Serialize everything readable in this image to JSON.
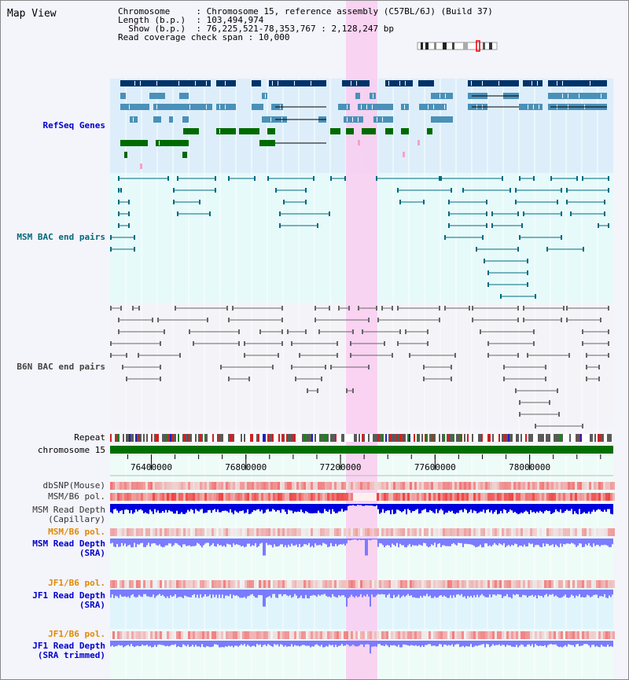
{
  "title": "Map View",
  "info": {
    "line1": "Chromosome     : Chromosome 15, reference assembly (C57BL/6J) (Build 37)",
    "line2": "Length (b.p.)  : 103,494,974",
    "line3": "  Show (b.p.)  : 76,225,521-78,353,767 : 2,128,247 bp",
    "line4": "Read coverage check span : 10,000"
  },
  "tracks": {
    "refseq": "RefSeq Genes",
    "msm_bac": "MSM BAC end pairs",
    "b6n_bac": "B6N BAC end pairs",
    "repeat": "Repeat",
    "chromosome": "chromosome 15",
    "dbsnp": "dbSNP(Mouse)",
    "msm_b6_pol": "MSM/B6 pol.",
    "msm_depth_cap_1": "MSM Read Depth",
    "msm_depth_cap_2": "(Capillary)",
    "msm_b6_pol2": "MSM/B6 pol.",
    "msm_depth_sra_1": "MSM Read Depth",
    "msm_depth_sra_2": "(SRA)",
    "jf1_pol": "JF1/B6 pol.",
    "jf1_depth_1": "JF1 Read Depth",
    "jf1_depth_2": "(SRA)",
    "jf1_pol2": "JF1/B6 pol.",
    "jf1_trim_1": "JF1 Read Depth",
    "jf1_trim_2": "(SRA trimmed)"
  },
  "axis_ticks": [
    "76400000",
    "76800000",
    "77200000",
    "77600000",
    "78000000"
  ],
  "colors": {
    "refseq_bg": "#ddeefa",
    "msm_bg": "#e6fafa",
    "b6n_bg": "#f4f4f8",
    "highlight": "#f9ccf0",
    "chromosome": "#007000",
    "gene_dark": "#00336a",
    "gene_mid": "#4a90b8",
    "gene_green": "#006a00",
    "msm_line": "#006a80",
    "b6n_line": "#666666",
    "depth_blue": "#0000dd",
    "depth_light": "#7b7bff"
  }
}
